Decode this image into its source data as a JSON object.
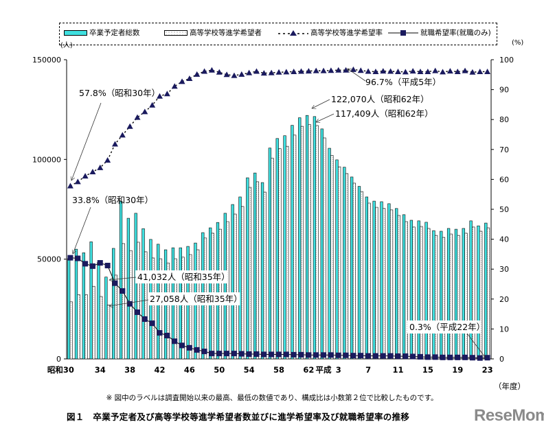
{
  "legend": {
    "total": "卒業予定者総数",
    "applicants": "高等学校等進学希望者",
    "advance_rate": "高等学校等進学希望率",
    "employ_rate": "就職希望率(就職のみ)"
  },
  "units": {
    "left": "(人)",
    "right": "(%)",
    "x": "（年度）"
  },
  "note": "※ 図中のラベルは調査開始以来の最高、最低の数値であり、構成比は小数第２位で比較したものです。",
  "caption": "図１　卒業予定者及び高等学校等進学希望者数並びに進学希望率及び就職希望率の推移",
  "logo": "ReseMom",
  "chart_data": {
    "type": "bar+line",
    "title": "卒業予定者及び高等学校等進学希望者数並びに進学希望率及び就職希望率の推移",
    "xlabel": "（年度）",
    "ylabel_left": "(人)",
    "ylabel_right": "(%)",
    "ylim_left": [
      0,
      150000
    ],
    "ylim_right": [
      0,
      100
    ],
    "left_ticks": [
      "0",
      "50000",
      "100000",
      "150000"
    ],
    "right_ticks": [
      "0",
      "10",
      "20",
      "30",
      "40",
      "50",
      "60",
      "70",
      "80",
      "90",
      "100"
    ],
    "x_tick_labels": [
      {
        "year": "昭和30",
        "label": "昭和30"
      },
      {
        "year": "昭和34",
        "label": "34"
      },
      {
        "year": "昭和38",
        "label": "38"
      },
      {
        "year": "昭和42",
        "label": "42"
      },
      {
        "year": "昭和46",
        "label": "46"
      },
      {
        "year": "昭和50",
        "label": "50"
      },
      {
        "year": "昭和54",
        "label": "54"
      },
      {
        "year": "昭和58",
        "label": "58"
      },
      {
        "year": "昭和62",
        "label": "62"
      },
      {
        "year": "平成1",
        "label": "平成"
      },
      {
        "year": "平成3",
        "label": "3"
      },
      {
        "year": "平成7",
        "label": "7"
      },
      {
        "year": "平成11",
        "label": "11"
      },
      {
        "year": "平成15",
        "label": "15"
      },
      {
        "year": "平成19",
        "label": "19"
      },
      {
        "year": "平成23",
        "label": "23"
      }
    ],
    "categories": [
      "昭和30",
      "昭和31",
      "昭和32",
      "昭和33",
      "昭和34",
      "昭和35",
      "昭和36",
      "昭和37",
      "昭和38",
      "昭和39",
      "昭和40",
      "昭和41",
      "昭和42",
      "昭和43",
      "昭和44",
      "昭和45",
      "昭和46",
      "昭和47",
      "昭和48",
      "昭和49",
      "昭和50",
      "昭和51",
      "昭和52",
      "昭和53",
      "昭和54",
      "昭和55",
      "昭和56",
      "昭和57",
      "昭和58",
      "昭和59",
      "昭和60",
      "昭和61",
      "昭和62",
      "昭和63",
      "平成1",
      "平成2",
      "平成3",
      "平成4",
      "平成5",
      "平成6",
      "平成7",
      "平成8",
      "平成9",
      "平成10",
      "平成11",
      "平成12",
      "平成13",
      "平成14",
      "平成15",
      "平成16",
      "平成17",
      "平成18",
      "平成19",
      "平成20",
      "平成21",
      "平成22",
      "平成23"
    ],
    "series": [
      {
        "name": "卒業予定者総数",
        "type": "bar",
        "axis": "left",
        "color": "#40e0e0",
        "values": [
          50300,
          55000,
          53200,
          58700,
          48500,
          41032,
          55400,
          79000,
          70500,
          73000,
          65300,
          59900,
          57500,
          54700,
          55700,
          55700,
          56400,
          58100,
          63300,
          65700,
          68400,
          73000,
          77400,
          81200,
          90800,
          93200,
          88400,
          105700,
          110500,
          111900,
          117100,
          120900,
          122070,
          121500,
          115300,
          105600,
          99800,
          96100,
          91200,
          86500,
          81200,
          79100,
          78800,
          77800,
          75400,
          72300,
          69500,
          69200,
          68500,
          64300,
          64000,
          65400,
          65000,
          65400,
          69200,
          66700,
          68100
        ]
      },
      {
        "name": "高等学校等進学希望者",
        "type": "bar",
        "axis": "left",
        "color": "#ffffff",
        "values": [
          28600,
          32200,
          32200,
          36400,
          31300,
          27058,
          42000,
          57800,
          54300,
          58500,
          53700,
          50600,
          50200,
          48100,
          50200,
          51000,
          52300,
          54700,
          60600,
          63000,
          65000,
          68800,
          72600,
          76400,
          86000,
          88800,
          83600,
          100600,
          105400,
          106600,
          112200,
          116600,
          117409,
          117000,
          110800,
          102000,
          96300,
          92900,
          88100,
          83900,
          78100,
          76000,
          75400,
          74700,
          71900,
          68800,
          66100,
          66400,
          65400,
          61900,
          60900,
          62600,
          61900,
          63000,
          66100,
          64000,
          65700
        ]
      },
      {
        "name": "高等学校等進学希望率",
        "type": "line",
        "axis": "right",
        "color": "#1a1a5e",
        "marker": "triangle",
        "dash": true,
        "values": [
          57.8,
          59.2,
          61.1,
          62.5,
          63.9,
          66.4,
          71.8,
          74.8,
          77.7,
          80.7,
          82.6,
          84.8,
          87.8,
          88.6,
          91.1,
          92.7,
          93.7,
          95.1,
          96.1,
          96.5,
          95.8,
          95.0,
          94.7,
          95.1,
          95.6,
          96.1,
          95.5,
          95.6,
          95.8,
          95.9,
          96.0,
          96.1,
          96.2,
          96.3,
          96.3,
          96.4,
          96.5,
          96.5,
          96.7,
          96.4,
          96.1,
          96.0,
          96.2,
          96.1,
          96.0,
          95.9,
          96.2,
          96.0,
          96.0,
          96.3,
          95.9,
          96.2,
          96.0,
          96.3,
          95.8,
          96.0,
          96.0
        ]
      },
      {
        "name": "就職希望率(就職のみ)",
        "type": "line",
        "axis": "right",
        "color": "#1a1a5e",
        "marker": "square",
        "values": [
          33.8,
          33.6,
          31.8,
          31.0,
          32.1,
          31.2,
          25.3,
          22.7,
          18.4,
          15.6,
          13.3,
          11.9,
          8.7,
          7.8,
          5.9,
          4.5,
          3.7,
          3.0,
          2.5,
          1.8,
          1.8,
          1.8,
          1.8,
          1.7,
          1.6,
          1.6,
          1.5,
          1.5,
          1.5,
          1.5,
          1.4,
          1.4,
          1.3,
          1.3,
          1.3,
          1.3,
          1.2,
          1.2,
          1.1,
          1.1,
          1.0,
          1.0,
          1.0,
          1.0,
          0.9,
          0.9,
          0.8,
          0.7,
          0.6,
          0.6,
          0.5,
          0.5,
          0.5,
          0.5,
          0.4,
          0.3,
          0.4
        ]
      }
    ],
    "annotations": [
      {
        "text": "57.8%（昭和30年）",
        "series": "高等学校等進学希望率",
        "year": "昭和30"
      },
      {
        "text": "33.8%（昭和30年）",
        "series": "就職希望率(就職のみ)",
        "year": "昭和30"
      },
      {
        "text": "41,032人（昭和35年）",
        "series": "卒業予定者総数",
        "year": "昭和35"
      },
      {
        "text": "27,058人（昭和35年）",
        "series": "高等学校等進学希望者",
        "year": "昭和35"
      },
      {
        "text": "122,070人（昭和62年）",
        "series": "卒業予定者総数",
        "year": "昭和62"
      },
      {
        "text": "117,409人（昭和62年）",
        "series": "高等学校等進学希望者",
        "year": "昭和62"
      },
      {
        "text": "96.7%（平成5年）",
        "series": "高等学校等進学希望率",
        "year": "平成5"
      },
      {
        "text": "0.3%（平成22年）",
        "series": "就職希望率(就職のみ)",
        "year": "平成22"
      }
    ],
    "grid": false,
    "legend_position": "top"
  }
}
